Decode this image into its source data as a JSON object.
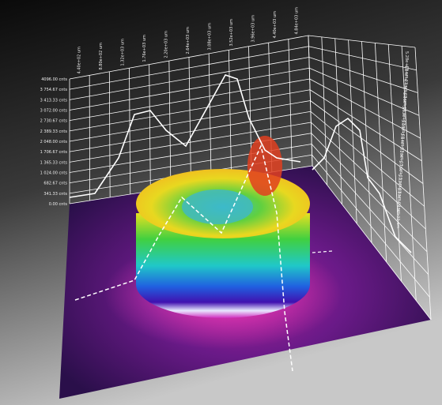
{
  "axes": {
    "z_labels": [
      "4096.00 cnts",
      "3 754.67 cnts",
      "3 413.33 cnts",
      "3 072.00 cnts",
      "2 730.67 cnts",
      "2 389.33 cnts",
      "2 048.00 cnts",
      "1 706.67 cnts",
      "1 365.33 cnts",
      "1 024.00 cnts",
      "682.67 cnts",
      "341.33 cnts",
      "0.00 cnts"
    ],
    "x_labels": [
      "4.40e+02 um",
      "8.80e+02 um",
      "1.32e+03 um",
      "1.76e+03 um",
      "2.20e+03 um",
      "2.64e+03 um",
      "3.08e+03 um",
      "3.52e+03 um",
      "3.96e+03 um",
      "4.40e+03 um",
      "4.84e+03 um"
    ],
    "y_labels": [
      "5.28e+03 um",
      "4.84e+03 um",
      "4.40e+03 um",
      "3.96e+03 um",
      "3.52e+03 um",
      "3.08e+03 um",
      "2.64e+03 um",
      "2.20e+03 um",
      "1.76e+03 um",
      "1.32e+03 um",
      "8.80e+02 um",
      "4.40e+02 um"
    ]
  }
}
